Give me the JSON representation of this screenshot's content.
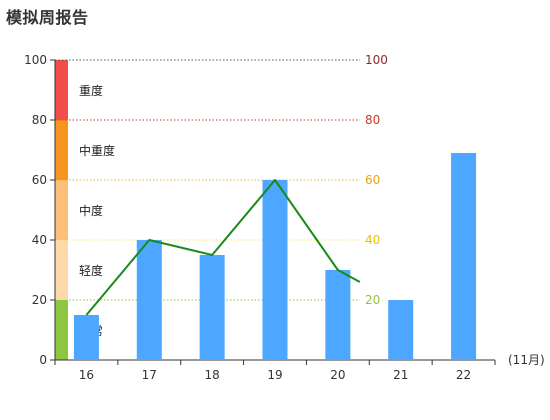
{
  "title": "模拟周报告",
  "chart_data": {
    "type": "bar",
    "title": "模拟周报告",
    "x_unit_label": "(11月)",
    "categories": [
      "16",
      "17",
      "18",
      "19",
      "20",
      "21",
      "22"
    ],
    "ylim": [
      0,
      100
    ],
    "y_ticks": [
      0,
      20,
      40,
      60,
      80,
      100
    ],
    "right_ticks": [
      20,
      40,
      60,
      80,
      100
    ],
    "bar_series": {
      "values": [
        15,
        40,
        35,
        60,
        30,
        20,
        69
      ],
      "color": "#4da6ff"
    },
    "line_series": {
      "color": "#1a8a1a",
      "points": [
        {
          "category": "16",
          "value": 15
        },
        {
          "category": "17",
          "value": 40
        },
        {
          "category": "18",
          "value": 35
        },
        {
          "category": "19",
          "value": 60
        },
        {
          "category": "20",
          "value": 30
        },
        {
          "category": "20.35",
          "value": 26
        }
      ]
    },
    "severity_bands": [
      {
        "label": "正常",
        "from": 0,
        "to": 20,
        "color": "#8dc63f",
        "line_color": "#8dc63f"
      },
      {
        "label": "轻度",
        "from": 20,
        "to": 40,
        "color": "#fdd8a9",
        "line_color": "#f5e35a"
      },
      {
        "label": "中度",
        "from": 40,
        "to": 60,
        "color": "#fbbf77",
        "line_color": "#e8b23a"
      },
      {
        "label": "中重度",
        "from": 60,
        "to": 80,
        "color": "#f7941d",
        "line_color": "#c0392b"
      },
      {
        "label": "重度",
        "from": 80,
        "to": 100,
        "color": "#f44b4b",
        "line_color": "#555555"
      }
    ],
    "right_tick_colors": {
      "20": "#8dc63f",
      "40": "#e6c200",
      "60": "#e8a317",
      "80": "#c0392b",
      "100": "#8b2a2a"
    },
    "grid": true,
    "legend": "none"
  }
}
